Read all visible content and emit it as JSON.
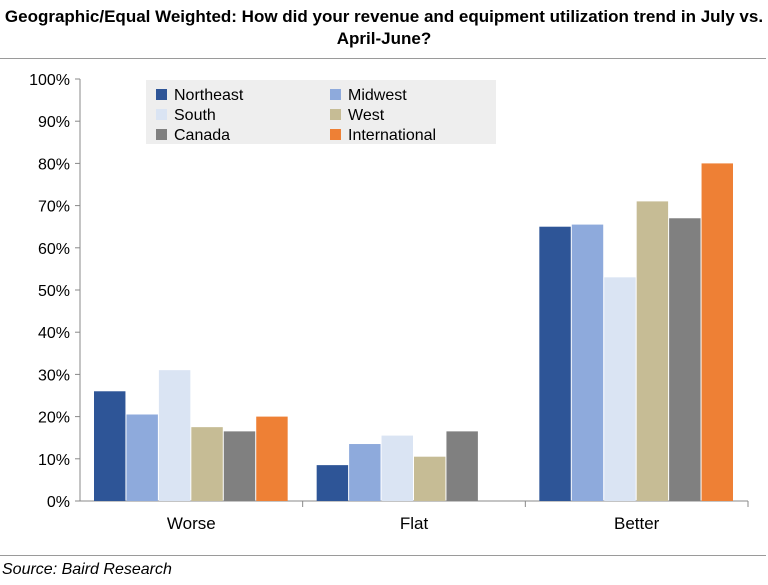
{
  "title": "Geographic/Equal Weighted: How did your revenue and equipment utilization trend in July vs. April-June?",
  "source": "Source: Baird Research",
  "chart_data": {
    "type": "bar",
    "title": "Geographic/Equal Weighted: How did your revenue and equipment utilization trend in July vs. April-June?",
    "categories": [
      "Worse",
      "Flat",
      "Better"
    ],
    "ylim": [
      0,
      100
    ],
    "yticks": [
      "0%",
      "10%",
      "20%",
      "30%",
      "40%",
      "50%",
      "60%",
      "70%",
      "80%",
      "90%",
      "100%"
    ],
    "grid": false,
    "legend_placement": "top-left",
    "series": [
      {
        "name": "Northeast",
        "color": "#2e5597",
        "values": [
          26,
          8.5,
          65
        ]
      },
      {
        "name": "Midwest",
        "color": "#8eaadc",
        "values": [
          20.5,
          13.5,
          65.5
        ]
      },
      {
        "name": "South",
        "color": "#dae4f3",
        "values": [
          31,
          15.5,
          53
        ]
      },
      {
        "name": "West",
        "color": "#c6bc95",
        "values": [
          17.5,
          10.5,
          71
        ]
      },
      {
        "name": "Canada",
        "color": "#808080",
        "values": [
          16.5,
          16.5,
          67
        ]
      },
      {
        "name": "International",
        "color": "#ee8035",
        "values": [
          20,
          0,
          80
        ]
      }
    ]
  }
}
